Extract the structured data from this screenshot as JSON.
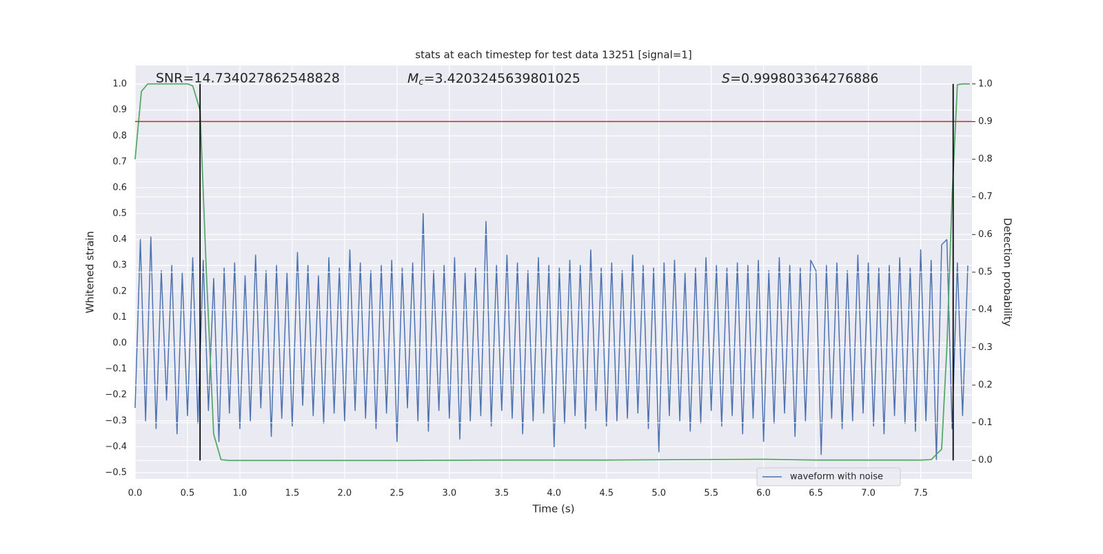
{
  "chart_data": {
    "type": "line",
    "title": "stats at each timestep for test data 13251 [signal=1]",
    "annotations": [
      {
        "text": "SNR=14.734027862548828"
      },
      {
        "symbol": "M",
        "subscript": "c",
        "text": "=3.4203245639801025"
      },
      {
        "symbol": "S",
        "text": "=0.999803364276886"
      }
    ],
    "xlabel": "Time (s)",
    "ylabel": "Whitened strain",
    "y2label": "Detection probability",
    "xlim": [
      0,
      7.99
    ],
    "ylim": [
      -0.524,
      1.072
    ],
    "y2lim": [
      -0.049,
      1.049
    ],
    "xticks": [
      {
        "value": 0,
        "label": "0.0"
      },
      0.5,
      {
        "value": 1,
        "label": "1.0"
      },
      1.5,
      {
        "value": 2,
        "label": "2.0"
      },
      2.5,
      {
        "value": 3,
        "label": "3.0"
      },
      3.5,
      {
        "value": 4,
        "label": "4.0"
      },
      4.5,
      {
        "value": 5,
        "label": "5.0"
      },
      5.5,
      {
        "value": 6,
        "label": "6.0"
      },
      6.5,
      {
        "value": 7,
        "label": "7.0"
      },
      7.5
    ],
    "yticks": [
      {
        "value": -0.5,
        "label": "−0.5"
      },
      {
        "value": -0.4,
        "label": "−0.4"
      },
      {
        "value": -0.3,
        "label": "−0.3"
      },
      {
        "value": -0.2,
        "label": "−0.2"
      },
      {
        "value": -0.1,
        "label": "−0.1"
      },
      {
        "value": 0,
        "label": "0.0"
      },
      0.1,
      0.2,
      0.3,
      0.4,
      0.5,
      0.6,
      0.7,
      0.8,
      0.9,
      {
        "value": 1,
        "label": "1.0"
      }
    ],
    "y2ticks": [
      {
        "value": 0,
        "label": "0.0"
      },
      0.1,
      0.2,
      0.3,
      0.4,
      0.5,
      0.6,
      0.7,
      0.8,
      0.9,
      {
        "value": 1,
        "label": "1.0"
      }
    ],
    "grid": true,
    "legend_loc": "lower right",
    "series": [
      {
        "name": "waveform with noise",
        "color": "#4c72b0",
        "x": [
          0,
          0.05,
          0.1,
          0.15,
          0.2,
          0.25,
          0.3,
          0.35,
          0.4,
          0.45,
          0.5,
          0.55,
          0.6,
          0.65,
          0.7,
          0.75,
          0.8,
          0.85,
          0.9,
          0.95,
          1.0,
          1.05,
          1.1,
          1.15,
          1.2,
          1.25,
          1.3,
          1.35,
          1.4,
          1.45,
          1.5,
          1.55,
          1.6,
          1.65,
          1.7,
          1.75,
          1.8,
          1.85,
          1.9,
          1.95,
          2.0,
          2.05,
          2.1,
          2.15,
          2.2,
          2.25,
          2.3,
          2.35,
          2.4,
          2.45,
          2.5,
          2.55,
          2.6,
          2.65,
          2.7,
          2.75,
          2.8,
          2.85,
          2.9,
          2.95,
          3.0,
          3.05,
          3.1,
          3.15,
          3.2,
          3.25,
          3.3,
          3.35,
          3.4,
          3.45,
          3.5,
          3.55,
          3.6,
          3.65,
          3.7,
          3.75,
          3.8,
          3.85,
          3.9,
          3.95,
          4.0,
          4.05,
          4.1,
          4.15,
          4.2,
          4.25,
          4.3,
          4.35,
          4.4,
          4.45,
          4.5,
          4.55,
          4.6,
          4.65,
          4.7,
          4.75,
          4.8,
          4.85,
          4.9,
          4.95,
          5.0,
          5.05,
          5.1,
          5.15,
          5.2,
          5.25,
          5.3,
          5.35,
          5.4,
          5.45,
          5.5,
          5.55,
          5.6,
          5.65,
          5.7,
          5.75,
          5.8,
          5.85,
          5.9,
          5.95,
          6.0,
          6.05,
          6.1,
          6.15,
          6.2,
          6.25,
          6.3,
          6.35,
          6.4,
          6.45,
          6.5,
          6.55,
          6.6,
          6.65,
          6.7,
          6.75,
          6.8,
          6.85,
          6.9,
          6.95,
          7.0,
          7.05,
          7.1,
          7.15,
          7.2,
          7.25,
          7.3,
          7.35,
          7.4,
          7.45,
          7.5,
          7.55,
          7.6,
          7.65,
          7.7,
          7.75,
          7.8,
          7.85,
          7.9,
          7.95
        ],
        "values": [
          -0.25,
          0.4,
          -0.3,
          0.41,
          -0.33,
          0.28,
          -0.22,
          0.3,
          -0.35,
          0.27,
          -0.28,
          0.33,
          -0.31,
          0.32,
          -0.26,
          0.25,
          -0.38,
          0.29,
          -0.27,
          0.31,
          -0.33,
          0.26,
          -0.3,
          0.34,
          -0.25,
          0.28,
          -0.36,
          0.3,
          -0.29,
          0.27,
          -0.32,
          0.35,
          -0.24,
          0.3,
          -0.28,
          0.26,
          -0.31,
          0.33,
          -0.27,
          0.29,
          -0.3,
          0.36,
          -0.26,
          0.31,
          -0.29,
          0.28,
          -0.33,
          0.3,
          -0.27,
          0.32,
          -0.38,
          0.29,
          -0.25,
          0.31,
          -0.3,
          0.5,
          -0.34,
          0.28,
          -0.26,
          0.3,
          -0.29,
          0.33,
          -0.37,
          0.27,
          -0.3,
          0.29,
          -0.28,
          0.47,
          -0.32,
          0.3,
          -0.26,
          0.34,
          -0.29,
          0.31,
          -0.35,
          0.28,
          -0.3,
          0.33,
          -0.27,
          0.3,
          -0.4,
          0.29,
          -0.31,
          0.32,
          -0.28,
          0.3,
          -0.33,
          0.36,
          -0.26,
          0.29,
          -0.32,
          0.31,
          -0.3,
          0.28,
          -0.29,
          0.34,
          -0.27,
          0.3,
          -0.33,
          0.29,
          -0.42,
          0.31,
          -0.28,
          0.32,
          -0.3,
          0.27,
          -0.34,
          0.29,
          -0.31,
          0.33,
          -0.26,
          0.3,
          -0.32,
          0.29,
          -0.28,
          0.31,
          -0.35,
          0.3,
          -0.29,
          0.32,
          -0.38,
          0.28,
          -0.31,
          0.33,
          -0.27,
          0.3,
          -0.36,
          0.29,
          -0.3,
          0.32,
          0.28,
          -0.43,
          0.3,
          -0.29,
          0.31,
          -0.33,
          0.28,
          -0.3,
          0.34,
          -0.27,
          0.31,
          -0.32,
          0.29,
          -0.35,
          0.3,
          -0.28,
          0.33,
          -0.31,
          0.29,
          -0.34,
          0.36,
          -0.3,
          0.32,
          -0.45,
          0.38,
          0.4,
          -0.33,
          0.31,
          -0.28,
          0.3
        ]
      },
      {
        "color": "#55a868",
        "axis": "y2",
        "x": [
          0,
          0.06,
          0.12,
          0.2,
          0.3,
          0.4,
          0.5,
          0.55,
          0.62,
          0.68,
          0.75,
          0.82,
          0.9,
          1.5,
          2.5,
          3.5,
          4.5,
          5.2,
          6.0,
          6.5,
          7.0,
          7.5,
          7.6,
          7.7,
          7.75,
          7.8,
          7.85,
          7.9,
          7.97
        ],
        "values": [
          0.8,
          0.98,
          1.0,
          1.0,
          1.0,
          1.0,
          1.0,
          0.995,
          0.93,
          0.5,
          0.07,
          0.002,
          0.0,
          0.0,
          0.0,
          0.001,
          0.001,
          0.002,
          0.003,
          0.001,
          0.001,
          0.001,
          0.002,
          0.03,
          0.3,
          0.7,
          0.998,
          1.0,
          1.0
        ]
      }
    ],
    "hline": {
      "y": 0.9,
      "color": "#b5302e",
      "axis": "y2"
    },
    "vlines": {
      "x": [
        0.62,
        7.81
      ],
      "ymin": 0,
      "ymax": 1,
      "color": "#000000",
      "axis": "y2"
    }
  }
}
